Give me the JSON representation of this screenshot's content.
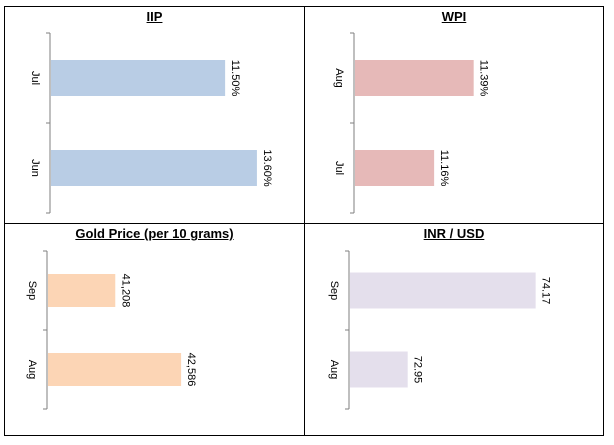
{
  "chart_data": [
    {
      "type": "bar",
      "orientation": "horizontal",
      "title": "IIP",
      "categories": [
        "Jul",
        "Jun"
      ],
      "values": [
        11.5,
        13.6
      ],
      "value_labels": [
        "11.50%",
        "13.60%"
      ],
      "xlim": [
        0,
        14.2
      ],
      "color": "#b9cde5"
    },
    {
      "type": "bar",
      "orientation": "horizontal",
      "title": "WPI",
      "categories": [
        "Aug",
        "Jul"
      ],
      "values": [
        11.39,
        11.16
      ],
      "value_labels": [
        "11.39%",
        "11.16%"
      ],
      "xlim": [
        10.7,
        11.95
      ],
      "color": "#e6b9b8"
    },
    {
      "type": "bar",
      "orientation": "horizontal",
      "title": "Gold Price (per 10 grams)",
      "categories": [
        "Sep",
        "Aug"
      ],
      "values": [
        41208,
        42586
      ],
      "value_labels": [
        "41,208",
        "42,586"
      ],
      "xlim": [
        39800,
        44300
      ],
      "color": "#fcd5b5"
    },
    {
      "type": "bar",
      "orientation": "horizontal",
      "title": "INR / USD",
      "categories": [
        "Sep",
        "Aug"
      ],
      "values": [
        74.17,
        72.95
      ],
      "value_labels": [
        "74.17",
        "72.95"
      ],
      "xlim": [
        72.4,
        74.45
      ],
      "color": "#e4dfec"
    }
  ]
}
